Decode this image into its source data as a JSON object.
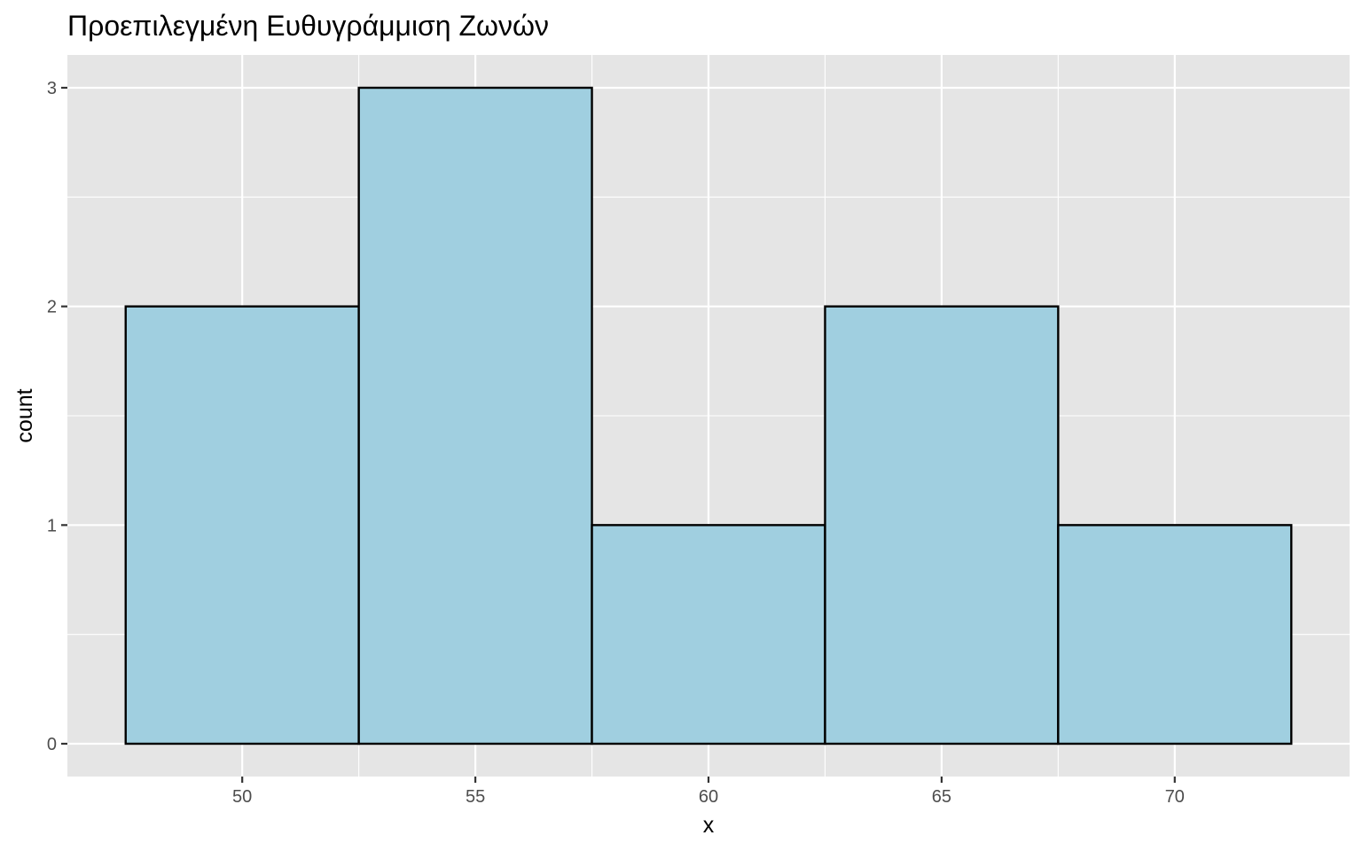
{
  "chart_data": {
    "type": "bar",
    "title": "Προεπιλεγμένη Ευθυγράμμιση Ζωνών",
    "xlabel": "x",
    "ylabel": "count",
    "bins": [
      {
        "start": 47.5,
        "end": 52.5,
        "count": 2
      },
      {
        "start": 52.5,
        "end": 57.5,
        "count": 3
      },
      {
        "start": 57.5,
        "end": 62.5,
        "count": 1
      },
      {
        "start": 62.5,
        "end": 67.5,
        "count": 2
      },
      {
        "start": 67.5,
        "end": 72.5,
        "count": 1
      }
    ],
    "xlim": [
      46.25,
      73.75
    ],
    "ylim": [
      -0.15,
      3.15
    ],
    "x_ticks": [
      50,
      55,
      60,
      65,
      70
    ],
    "x_tick_labels": [
      "50",
      "55",
      "60",
      "65",
      "70"
    ],
    "y_ticks": [
      0,
      1,
      2,
      3
    ],
    "y_tick_labels": [
      "0",
      "1",
      "2",
      "3"
    ],
    "grid": true,
    "colors": {
      "panel_background": "#e5e5e5",
      "grid": "#ffffff",
      "bar_fill": "#a0cfe0",
      "bar_outline": "#000000",
      "tick_text": "#4d4d4d"
    }
  }
}
